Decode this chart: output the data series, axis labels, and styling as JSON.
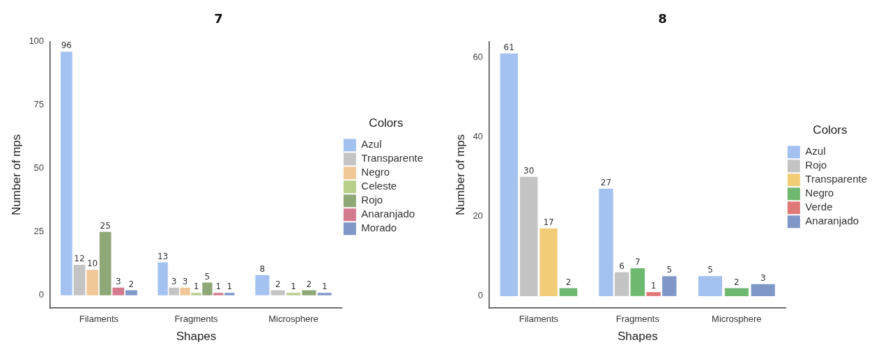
{
  "chart_data": [
    {
      "type": "bar",
      "title": "7",
      "xlabel": "Shapes",
      "ylabel": "Number of mps",
      "legend_title": "Colors",
      "categories": [
        "Filaments",
        "Fragments",
        "Microsphere"
      ],
      "series": [
        {
          "name": "Azul",
          "color": "#a4c2f0",
          "values": [
            96,
            13,
            8
          ]
        },
        {
          "name": "Transparente",
          "color": "#c4c4c4",
          "values": [
            12,
            3,
            2
          ]
        },
        {
          "name": "Negro",
          "color": "#f0c898",
          "values": [
            10,
            3,
            null
          ]
        },
        {
          "name": "Celeste",
          "color": "#b8cf8a",
          "values": [
            null,
            1,
            1
          ]
        },
        {
          "name": "Rojo",
          "color": "#8fa878",
          "values": [
            25,
            5,
            2
          ]
        },
        {
          "name": "Anaranjado",
          "color": "#d47a8f",
          "values": [
            3,
            1,
            null
          ]
        },
        {
          "name": "Morado",
          "color": "#7f98c8",
          "values": [
            2,
            1,
            1
          ]
        }
      ],
      "ylim": [
        -5,
        100
      ],
      "yticks": [
        0,
        25,
        50,
        75,
        100
      ],
      "grid": false,
      "legend": "right",
      "data_labels": true
    },
    {
      "type": "bar",
      "title": "8",
      "xlabel": "Shapes",
      "ylabel": "Number of mps",
      "legend_title": "Colors",
      "categories": [
        "Filaments",
        "Fragments",
        "Microsphere"
      ],
      "series": [
        {
          "name": "Azul",
          "color": "#a4c2f0",
          "values": [
            61,
            27,
            5
          ]
        },
        {
          "name": "Rojo",
          "color": "#c4c4c4",
          "values": [
            30,
            6,
            null
          ]
        },
        {
          "name": "Transparente",
          "color": "#f2cd78",
          "values": [
            17,
            null,
            null
          ]
        },
        {
          "name": "Negro",
          "color": "#6fb86f",
          "values": [
            2,
            7,
            2
          ]
        },
        {
          "name": "Verde",
          "color": "#e07878",
          "values": [
            null,
            1,
            null
          ]
        },
        {
          "name": "Anaranjado",
          "color": "#7f98c8",
          "values": [
            null,
            5,
            3
          ]
        }
      ],
      "ylim": [
        -3,
        64
      ],
      "yticks": [
        0,
        20,
        40,
        60
      ],
      "grid": false,
      "legend": "right",
      "data_labels": true
    }
  ]
}
